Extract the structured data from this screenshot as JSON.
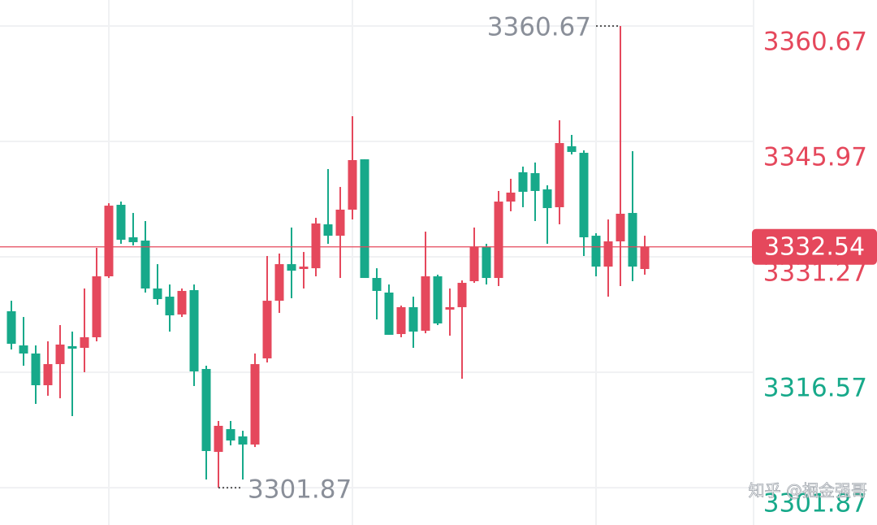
{
  "chart_data": {
    "type": "candlestick",
    "open": [
      3324.34,
      3319.99,
      3318.96,
      3314.92,
      3317.61,
      3319.89,
      3319.68,
      3321.03,
      3328.79,
      3337.9,
      3333.76,
      3333.34,
      3327.24,
      3326.2,
      3323.93,
      3327.03,
      3316.99,
      3306.43,
      3309.33,
      3308.4,
      3307.37,
      3318.34,
      3325.68,
      3330.34,
      3329.72,
      3329.82,
      3335.41,
      3333.96,
      3337.28,
      3343.69,
      3328.58,
      3326.72,
      3321.44,
      3324.86,
      3321.86,
      3328.79,
      3324.55,
      3324.86,
      3328.17,
      3332.52,
      3328.58,
      3338.31,
      3342.04,
      3341.93,
      3339.86,
      3337.59,
      3345.35,
      3344.52,
      3333.96,
      3330.03,
      3333.24,
      3336.86,
      3329.72
    ],
    "high": [
      3325.68,
      3323.61,
      3319.99,
      3320.51,
      3322.58,
      3321.75,
      3327.24,
      3332.41,
      3338.1,
      3338.31,
      3336.86,
      3335.83,
      3330.34,
      3327.75,
      3327.24,
      3327.75,
      3317.4,
      3310.37,
      3310.37,
      3309.12,
      3318.96,
      3331.38,
      3331.69,
      3335.0,
      3331.89,
      3336.24,
      3342.45,
      3340.17,
      3349.18,
      3343.69,
      3329.82,
      3327.75,
      3325.06,
      3326.2,
      3334.48,
      3329.0,
      3327.24,
      3328.27,
      3335.0,
      3332.93,
      3339.66,
      3341.21,
      3342.76,
      3343.28,
      3340.38,
      3348.66,
      3346.8,
      3344.83,
      3334.28,
      3336.03,
      3360.67,
      3344.73,
      3333.96
    ],
    "low": [
      3319.47,
      3317.4,
      3312.54,
      3313.58,
      3313.26,
      3310.99,
      3316.58,
      3320.51,
      3328.58,
      3332.93,
      3332.72,
      3326.72,
      3325.17,
      3321.75,
      3323.61,
      3314.82,
      3302.91,
      3301.87,
      3307.26,
      3302.91,
      3307.05,
      3317.82,
      3324.13,
      3326.0,
      3327.24,
      3328.79,
      3332.93,
      3328.58,
      3336.03,
      3328.58,
      3323.3,
      3321.34,
      3321.03,
      3319.68,
      3321.54,
      3322.58,
      3321.23,
      3315.75,
      3327.96,
      3327.75,
      3327.55,
      3337.07,
      3337.59,
      3335.83,
      3332.93,
      3335.41,
      3344.31,
      3331.38,
      3328.79,
      3326.2,
      3327.55,
      3328.17,
      3329.0
    ],
    "close": [
      3320.2,
      3318.96,
      3314.92,
      3317.61,
      3320.1,
      3319.58,
      3321.03,
      3328.79,
      3337.79,
      3333.45,
      3333.14,
      3327.24,
      3325.89,
      3323.82,
      3326.93,
      3316.68,
      3306.54,
      3309.75,
      3307.88,
      3307.37,
      3317.61,
      3325.68,
      3330.34,
      3329.51,
      3330.03,
      3335.52,
      3333.96,
      3337.28,
      3343.59,
      3328.58,
      3326.93,
      3321.34,
      3324.86,
      3321.75,
      3328.79,
      3322.79,
      3324.86,
      3327.96,
      3332.52,
      3328.58,
      3338.31,
      3339.45,
      3339.55,
      3339.66,
      3337.48,
      3345.76,
      3344.63,
      3333.76,
      3330.03,
      3333.24,
      3336.76,
      3330.03,
      3332.54
    ],
    "up_color": "#e5485c",
    "down_color": "#17a98a",
    "ylim": [
      3297.12,
      3363.98
    ],
    "yticks": [
      3360.67,
      3345.97,
      3331.27,
      3316.57,
      3301.87
    ],
    "ytick_colors": [
      "#e5485c",
      "#e5485c",
      "#e5485c",
      "#17a98a",
      "#17a98a"
    ],
    "grid": true,
    "current_price": 3332.54,
    "high_label": "3360.67",
    "low_label": "3301.87",
    "watermark": "知乎 @掘金强哥"
  }
}
